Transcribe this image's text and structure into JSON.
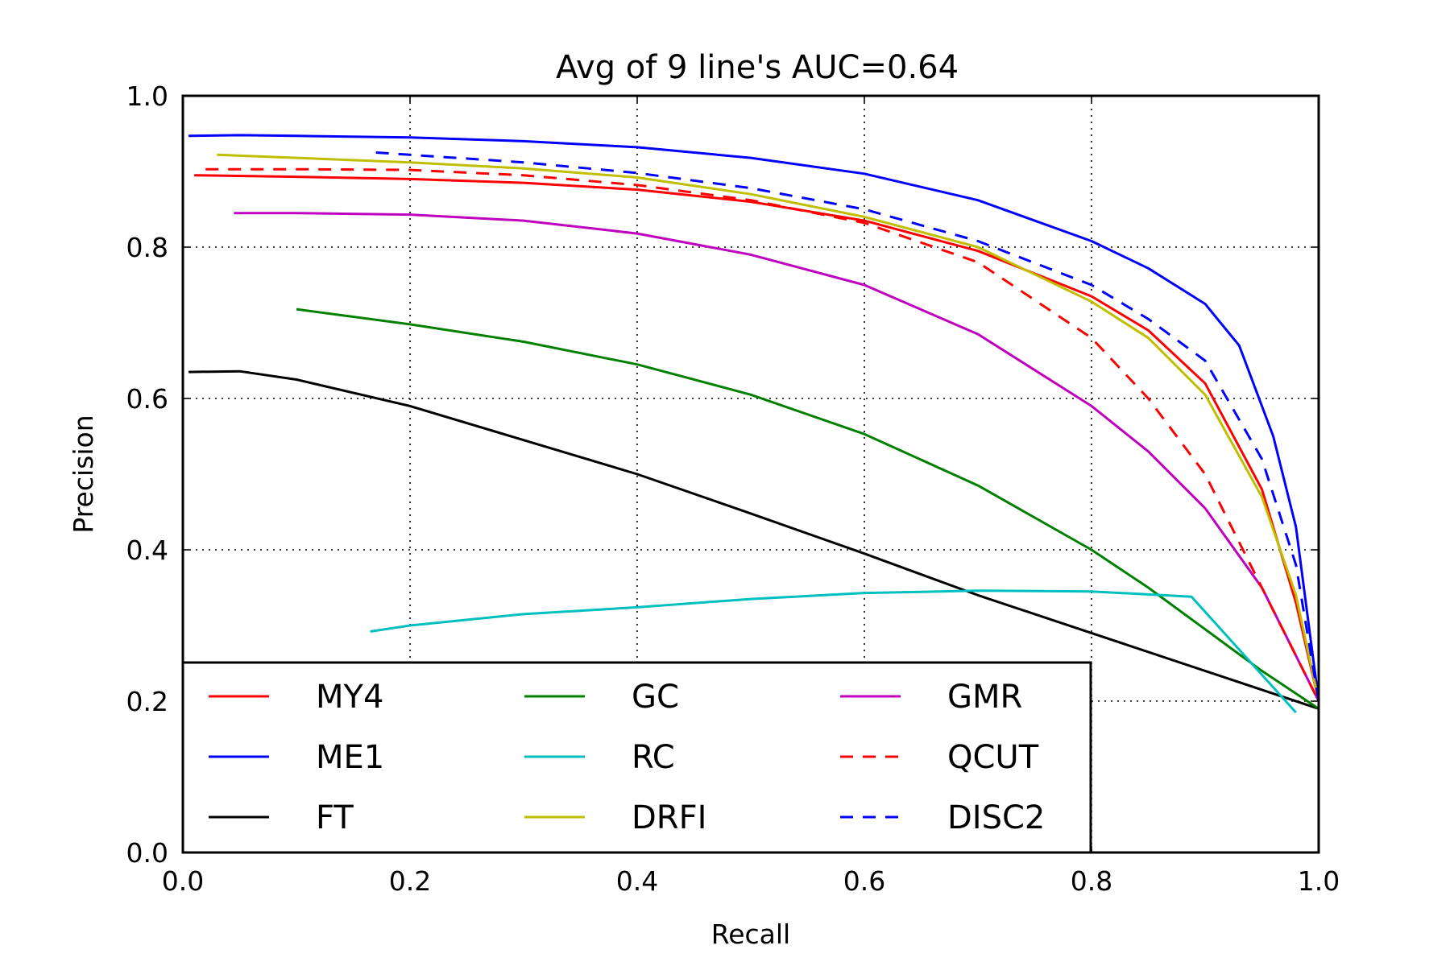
{
  "chart_data": {
    "type": "line",
    "title": "Avg of 9 line's AUC=0.64",
    "xlabel": "Recall",
    "ylabel": "Precision",
    "xlim": [
      0.0,
      1.0
    ],
    "ylim": [
      0.0,
      1.0
    ],
    "x_ticks": [
      "0.0",
      "0.2",
      "0.4",
      "0.6",
      "0.8",
      "1.0"
    ],
    "y_ticks": [
      "0.0",
      "0.2",
      "0.4",
      "0.6",
      "0.8",
      "1.0"
    ],
    "grid": true,
    "legend_position": "lower-left",
    "series": [
      {
        "name": "MY4",
        "color": "#ff0000",
        "dash": "solid",
        "points": [
          [
            0.01,
            0.895
          ],
          [
            0.1,
            0.893
          ],
          [
            0.2,
            0.89
          ],
          [
            0.3,
            0.885
          ],
          [
            0.4,
            0.876
          ],
          [
            0.5,
            0.86
          ],
          [
            0.6,
            0.835
          ],
          [
            0.7,
            0.795
          ],
          [
            0.8,
            0.735
          ],
          [
            0.85,
            0.69
          ],
          [
            0.9,
            0.62
          ],
          [
            0.95,
            0.48
          ],
          [
            0.98,
            0.33
          ],
          [
            1.0,
            0.2
          ]
        ]
      },
      {
        "name": "ME1",
        "color": "#0000ff",
        "dash": "solid",
        "points": [
          [
            0.005,
            0.947
          ],
          [
            0.05,
            0.948
          ],
          [
            0.1,
            0.947
          ],
          [
            0.2,
            0.945
          ],
          [
            0.3,
            0.94
          ],
          [
            0.4,
            0.932
          ],
          [
            0.5,
            0.918
          ],
          [
            0.6,
            0.897
          ],
          [
            0.7,
            0.862
          ],
          [
            0.8,
            0.808
          ],
          [
            0.85,
            0.772
          ],
          [
            0.9,
            0.725
          ],
          [
            0.93,
            0.67
          ],
          [
            0.96,
            0.55
          ],
          [
            0.98,
            0.43
          ],
          [
            1.0,
            0.2
          ]
        ]
      },
      {
        "name": "FT",
        "color": "#000000",
        "dash": "solid",
        "points": [
          [
            0.005,
            0.635
          ],
          [
            0.05,
            0.636
          ],
          [
            0.1,
            0.625
          ],
          [
            0.2,
            0.59
          ],
          [
            0.3,
            0.545
          ],
          [
            0.4,
            0.5
          ],
          [
            0.5,
            0.448
          ],
          [
            0.6,
            0.395
          ],
          [
            0.7,
            0.34
          ],
          [
            0.8,
            0.29
          ],
          [
            0.9,
            0.24
          ],
          [
            1.0,
            0.19
          ]
        ]
      },
      {
        "name": "GC",
        "color": "#008000",
        "dash": "solid",
        "points": [
          [
            0.1,
            0.718
          ],
          [
            0.2,
            0.698
          ],
          [
            0.3,
            0.675
          ],
          [
            0.4,
            0.645
          ],
          [
            0.5,
            0.605
          ],
          [
            0.6,
            0.553
          ],
          [
            0.7,
            0.485
          ],
          [
            0.8,
            0.4
          ],
          [
            0.85,
            0.35
          ],
          [
            0.9,
            0.295
          ],
          [
            0.95,
            0.24
          ],
          [
            1.0,
            0.19
          ]
        ]
      },
      {
        "name": "RC",
        "color": "#00bfbf",
        "dash": "solid",
        "points": [
          [
            0.165,
            0.292
          ],
          [
            0.2,
            0.3
          ],
          [
            0.3,
            0.315
          ],
          [
            0.4,
            0.324
          ],
          [
            0.5,
            0.335
          ],
          [
            0.6,
            0.343
          ],
          [
            0.7,
            0.346
          ],
          [
            0.8,
            0.345
          ],
          [
            0.888,
            0.338
          ],
          [
            0.98,
            0.185
          ]
        ]
      },
      {
        "name": "DRFI",
        "color": "#bfbf00",
        "dash": "solid",
        "points": [
          [
            0.03,
            0.922
          ],
          [
            0.1,
            0.918
          ],
          [
            0.2,
            0.912
          ],
          [
            0.3,
            0.904
          ],
          [
            0.4,
            0.892
          ],
          [
            0.5,
            0.87
          ],
          [
            0.6,
            0.84
          ],
          [
            0.7,
            0.8
          ],
          [
            0.8,
            0.728
          ],
          [
            0.85,
            0.68
          ],
          [
            0.9,
            0.605
          ],
          [
            0.95,
            0.47
          ],
          [
            0.98,
            0.34
          ],
          [
            1.0,
            0.2
          ]
        ]
      },
      {
        "name": "GMR",
        "color": "#bf00bf",
        "dash": "solid",
        "points": [
          [
            0.045,
            0.845
          ],
          [
            0.1,
            0.845
          ],
          [
            0.2,
            0.843
          ],
          [
            0.3,
            0.835
          ],
          [
            0.4,
            0.818
          ],
          [
            0.5,
            0.79
          ],
          [
            0.6,
            0.75
          ],
          [
            0.7,
            0.685
          ],
          [
            0.8,
            0.59
          ],
          [
            0.85,
            0.53
          ],
          [
            0.9,
            0.455
          ],
          [
            0.95,
            0.35
          ],
          [
            1.0,
            0.2
          ]
        ]
      },
      {
        "name": "QCUT",
        "color": "#ff0000",
        "dash": "dashed",
        "points": [
          [
            0.02,
            0.903
          ],
          [
            0.1,
            0.903
          ],
          [
            0.2,
            0.902
          ],
          [
            0.3,
            0.895
          ],
          [
            0.4,
            0.882
          ],
          [
            0.5,
            0.862
          ],
          [
            0.6,
            0.832
          ],
          [
            0.7,
            0.78
          ],
          [
            0.8,
            0.68
          ],
          [
            0.85,
            0.6
          ],
          [
            0.9,
            0.5
          ],
          [
            0.95,
            0.35
          ],
          [
            1.0,
            0.2
          ]
        ]
      },
      {
        "name": "DISC2",
        "color": "#0000ff",
        "dash": "dashed",
        "points": [
          [
            0.17,
            0.925
          ],
          [
            0.2,
            0.922
          ],
          [
            0.3,
            0.912
          ],
          [
            0.4,
            0.898
          ],
          [
            0.5,
            0.878
          ],
          [
            0.6,
            0.85
          ],
          [
            0.7,
            0.808
          ],
          [
            0.8,
            0.75
          ],
          [
            0.85,
            0.705
          ],
          [
            0.9,
            0.65
          ],
          [
            0.95,
            0.52
          ],
          [
            0.98,
            0.38
          ],
          [
            1.0,
            0.2
          ]
        ]
      }
    ]
  }
}
